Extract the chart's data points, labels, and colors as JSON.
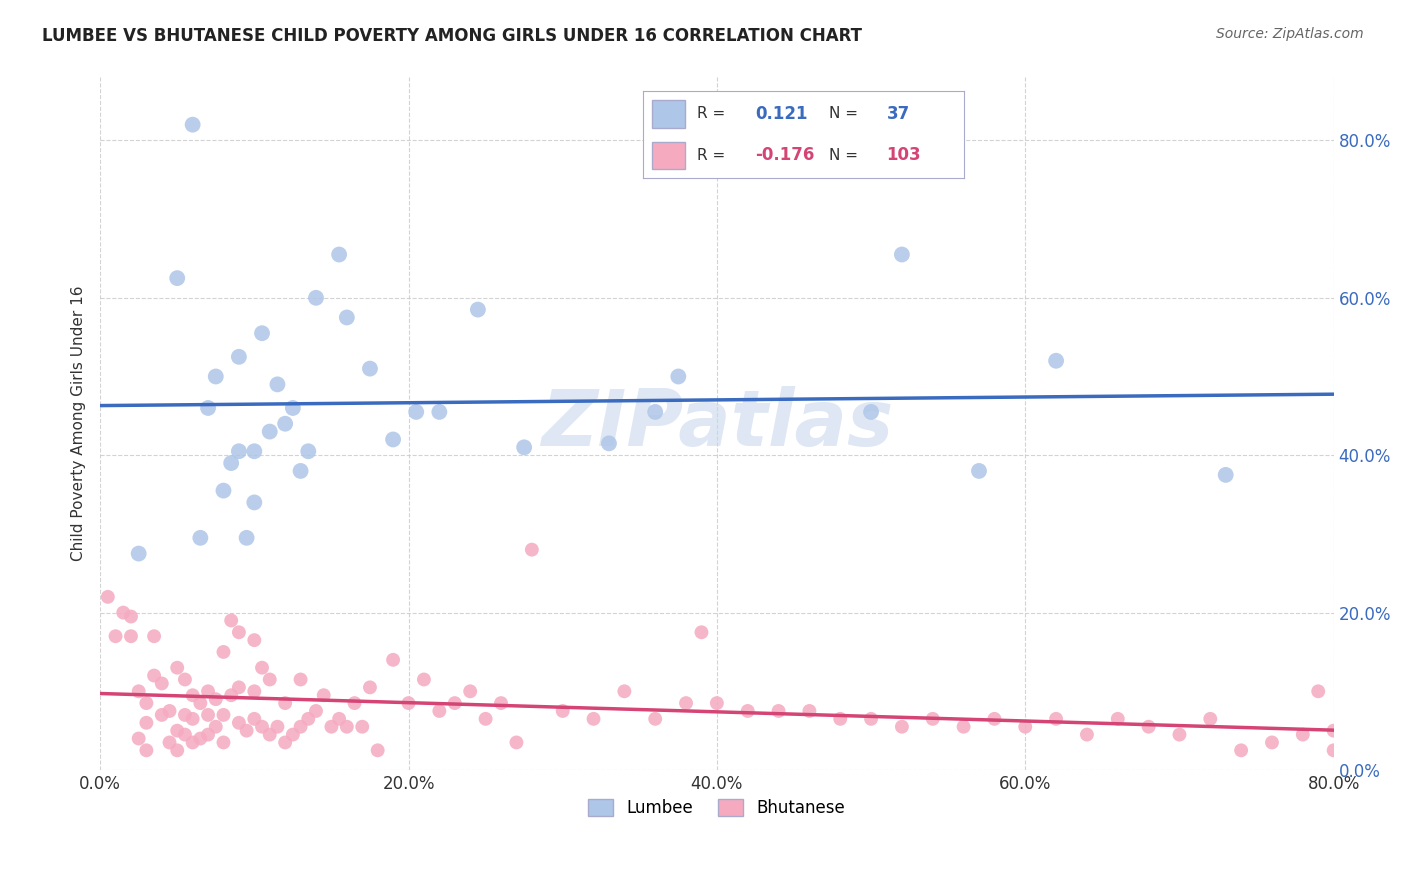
{
  "title": "LUMBEE VS BHUTANESE CHILD POVERTY AMONG GIRLS UNDER 16 CORRELATION CHART",
  "source": "Source: ZipAtlas.com",
  "ylabel": "Child Poverty Among Girls Under 16",
  "lumbee_R": 0.121,
  "lumbee_N": 37,
  "bhutanese_R": -0.176,
  "bhutanese_N": 103,
  "lumbee_color": "#aec6e8",
  "lumbee_line_color": "#3a6bbf",
  "bhutanese_color": "#f5aac0",
  "bhutanese_line_color": "#d44475",
  "watermark": "ZIPatlas",
  "watermark_color": "#c8d8ec",
  "bg_color": "#ffffff",
  "grid_color": "#c8c8c8",
  "xlim": [
    0.0,
    0.8
  ],
  "ylim": [
    0.0,
    0.88
  ],
  "xticks": [
    0.0,
    0.2,
    0.4,
    0.6,
    0.8
  ],
  "yticks": [
    0.0,
    0.2,
    0.4,
    0.6,
    0.8
  ],
  "lumbee_x": [
    0.025,
    0.05,
    0.06,
    0.065,
    0.07,
    0.075,
    0.08,
    0.085,
    0.09,
    0.09,
    0.095,
    0.1,
    0.1,
    0.105,
    0.11,
    0.115,
    0.12,
    0.125,
    0.13,
    0.135,
    0.14,
    0.155,
    0.16,
    0.175,
    0.19,
    0.205,
    0.22,
    0.245,
    0.275,
    0.33,
    0.36,
    0.375,
    0.5,
    0.52,
    0.57,
    0.62,
    0.73
  ],
  "lumbee_y": [
    0.275,
    0.625,
    0.82,
    0.295,
    0.46,
    0.5,
    0.355,
    0.39,
    0.405,
    0.525,
    0.295,
    0.34,
    0.405,
    0.555,
    0.43,
    0.49,
    0.44,
    0.46,
    0.38,
    0.405,
    0.6,
    0.655,
    0.575,
    0.51,
    0.42,
    0.455,
    0.455,
    0.585,
    0.41,
    0.415,
    0.455,
    0.5,
    0.455,
    0.655,
    0.38,
    0.52,
    0.375
  ],
  "bhutanese_x": [
    0.005,
    0.01,
    0.015,
    0.02,
    0.02,
    0.025,
    0.025,
    0.03,
    0.03,
    0.03,
    0.035,
    0.035,
    0.04,
    0.04,
    0.045,
    0.045,
    0.05,
    0.05,
    0.05,
    0.055,
    0.055,
    0.055,
    0.06,
    0.06,
    0.06,
    0.065,
    0.065,
    0.07,
    0.07,
    0.07,
    0.075,
    0.075,
    0.08,
    0.08,
    0.08,
    0.085,
    0.085,
    0.09,
    0.09,
    0.09,
    0.095,
    0.1,
    0.1,
    0.1,
    0.105,
    0.105,
    0.11,
    0.11,
    0.115,
    0.12,
    0.12,
    0.125,
    0.13,
    0.13,
    0.135,
    0.14,
    0.145,
    0.15,
    0.155,
    0.16,
    0.165,
    0.17,
    0.175,
    0.18,
    0.19,
    0.2,
    0.21,
    0.22,
    0.23,
    0.24,
    0.25,
    0.26,
    0.27,
    0.28,
    0.3,
    0.32,
    0.34,
    0.36,
    0.38,
    0.39,
    0.4,
    0.42,
    0.44,
    0.46,
    0.48,
    0.5,
    0.52,
    0.54,
    0.56,
    0.58,
    0.6,
    0.62,
    0.64,
    0.66,
    0.68,
    0.7,
    0.72,
    0.74,
    0.76,
    0.78,
    0.79,
    0.8,
    0.8
  ],
  "bhutanese_y": [
    0.22,
    0.17,
    0.2,
    0.195,
    0.17,
    0.04,
    0.1,
    0.025,
    0.06,
    0.085,
    0.12,
    0.17,
    0.07,
    0.11,
    0.035,
    0.075,
    0.025,
    0.05,
    0.13,
    0.045,
    0.07,
    0.115,
    0.035,
    0.065,
    0.095,
    0.04,
    0.085,
    0.045,
    0.07,
    0.1,
    0.055,
    0.09,
    0.035,
    0.07,
    0.15,
    0.095,
    0.19,
    0.06,
    0.105,
    0.175,
    0.05,
    0.065,
    0.1,
    0.165,
    0.055,
    0.13,
    0.045,
    0.115,
    0.055,
    0.035,
    0.085,
    0.045,
    0.055,
    0.115,
    0.065,
    0.075,
    0.095,
    0.055,
    0.065,
    0.055,
    0.085,
    0.055,
    0.105,
    0.025,
    0.14,
    0.085,
    0.115,
    0.075,
    0.085,
    0.1,
    0.065,
    0.085,
    0.035,
    0.28,
    0.075,
    0.065,
    0.1,
    0.065,
    0.085,
    0.175,
    0.085,
    0.075,
    0.075,
    0.075,
    0.065,
    0.065,
    0.055,
    0.065,
    0.055,
    0.065,
    0.055,
    0.065,
    0.045,
    0.065,
    0.055,
    0.045,
    0.065,
    0.025,
    0.035,
    0.045,
    0.1,
    0.025,
    0.05
  ]
}
